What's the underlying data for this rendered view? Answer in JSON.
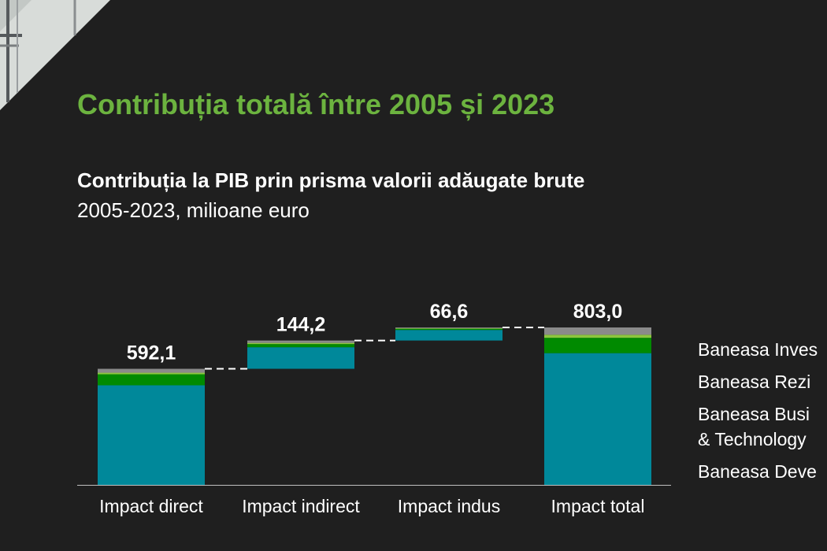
{
  "title": "Contribuția totală între 2005 și 2023",
  "subtitle": "Contribuția la PIB prin prisma valorii adăugate brute",
  "caption": "2005-2023, milioane euro",
  "colors": {
    "title": "#6cb33f",
    "development": "#00889a",
    "business_technology": "#008a00",
    "rezidential": "#8cc63f",
    "investments": "#8a8a8a"
  },
  "legend": [
    {
      "label": "Baneasa Inves",
      "color": "#8a8a8a"
    },
    {
      "label": "Baneasa Rezi",
      "color": "#8cc63f"
    },
    {
      "label": "Baneasa Busi\n& Technology",
      "color": "#008a00"
    },
    {
      "label": "Baneasa Deve",
      "color": "#00889a"
    }
  ],
  "chart_data": {
    "type": "bar",
    "subtype": "waterfall",
    "categories": [
      "Impact direct",
      "Impact indirect",
      "Impact indus",
      "Impact total"
    ],
    "totals": [
      592.1,
      144.2,
      66.6,
      803.0
    ],
    "total_labels": [
      "592,1",
      "144,2",
      "66,6",
      "803,0"
    ],
    "connectors": true,
    "series": [
      {
        "name": "Baneasa Deve",
        "color": "#00889a",
        "values": [
          508,
          110,
          54,
          672
        ]
      },
      {
        "name": "Baneasa Busi & Technology",
        "color": "#008a00",
        "values": [
          56,
          16,
          6,
          78
        ]
      },
      {
        "name": "Baneasa Rezi",
        "color": "#8cc63f",
        "values": [
          8,
          6,
          2.6,
          16
        ]
      },
      {
        "name": "Baneasa Inves",
        "color": "#8a8a8a",
        "values": [
          20.1,
          12.2,
          4,
          37
        ]
      }
    ],
    "ylim": [
      0,
      803.0
    ],
    "grid": false,
    "legend_position": "right"
  }
}
